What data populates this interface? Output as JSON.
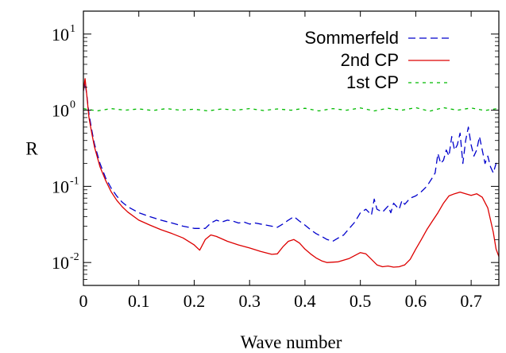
{
  "chart_data": {
    "type": "line",
    "title": "",
    "xlabel": "Wave number",
    "ylabel": "R",
    "xlim": [
      0,
      0.75
    ],
    "ylim": [
      0.005,
      20
    ],
    "yscale": "log",
    "xticks": [
      0,
      0.1,
      0.2,
      0.3,
      0.4,
      0.5,
      0.6,
      0.7
    ],
    "xtick_labels": [
      "0",
      "0.1",
      "0.2",
      "0.3",
      "0.4",
      "0.5",
      "0.6",
      "0.7"
    ],
    "yticks": [
      {
        "value": 0.01,
        "base": "10",
        "exp": "-2"
      },
      {
        "value": 0.1,
        "base": "10",
        "exp": "-1"
      },
      {
        "value": 1,
        "base": "10",
        "exp": "0"
      },
      {
        "value": 10,
        "base": "10",
        "exp": "1"
      }
    ],
    "legend_position": "top-right",
    "series": [
      {
        "name": "Sommerfeld",
        "color": "#0000cc",
        "dash": "dashed",
        "points": [
          [
            0,
            1.8
          ],
          [
            0.003,
            2.3
          ],
          [
            0.006,
            1.6
          ],
          [
            0.01,
            0.9
          ],
          [
            0.015,
            0.55
          ],
          [
            0.02,
            0.36
          ],
          [
            0.03,
            0.2
          ],
          [
            0.04,
            0.13
          ],
          [
            0.05,
            0.095
          ],
          [
            0.06,
            0.075
          ],
          [
            0.07,
            0.062
          ],
          [
            0.08,
            0.054
          ],
          [
            0.1,
            0.045
          ],
          [
            0.12,
            0.04
          ],
          [
            0.14,
            0.036
          ],
          [
            0.16,
            0.033
          ],
          [
            0.18,
            0.03
          ],
          [
            0.2,
            0.028
          ],
          [
            0.22,
            0.028
          ],
          [
            0.23,
            0.033
          ],
          [
            0.24,
            0.036
          ],
          [
            0.25,
            0.034
          ],
          [
            0.26,
            0.036
          ],
          [
            0.27,
            0.035
          ],
          [
            0.28,
            0.033
          ],
          [
            0.29,
            0.034
          ],
          [
            0.3,
            0.032
          ],
          [
            0.31,
            0.033
          ],
          [
            0.32,
            0.032
          ],
          [
            0.33,
            0.031
          ],
          [
            0.34,
            0.03
          ],
          [
            0.35,
            0.029
          ],
          [
            0.36,
            0.032
          ],
          [
            0.37,
            0.036
          ],
          [
            0.38,
            0.04
          ],
          [
            0.39,
            0.035
          ],
          [
            0.4,
            0.031
          ],
          [
            0.41,
            0.027
          ],
          [
            0.42,
            0.024
          ],
          [
            0.43,
            0.022
          ],
          [
            0.44,
            0.02
          ],
          [
            0.45,
            0.019
          ],
          [
            0.46,
            0.021
          ],
          [
            0.47,
            0.023
          ],
          [
            0.48,
            0.028
          ],
          [
            0.49,
            0.034
          ],
          [
            0.5,
            0.045
          ],
          [
            0.51,
            0.05
          ],
          [
            0.52,
            0.042
          ],
          [
            0.525,
            0.068
          ],
          [
            0.53,
            0.05
          ],
          [
            0.54,
            0.046
          ],
          [
            0.55,
            0.055
          ],
          [
            0.555,
            0.045
          ],
          [
            0.56,
            0.06
          ],
          [
            0.57,
            0.05
          ],
          [
            0.575,
            0.065
          ],
          [
            0.58,
            0.058
          ],
          [
            0.59,
            0.07
          ],
          [
            0.6,
            0.075
          ],
          [
            0.61,
            0.085
          ],
          [
            0.62,
            0.1
          ],
          [
            0.63,
            0.13
          ],
          [
            0.635,
            0.15
          ],
          [
            0.64,
            0.27
          ],
          [
            0.645,
            0.2
          ],
          [
            0.65,
            0.22
          ],
          [
            0.655,
            0.3
          ],
          [
            0.66,
            0.25
          ],
          [
            0.665,
            0.45
          ],
          [
            0.67,
            0.3
          ],
          [
            0.675,
            0.35
          ],
          [
            0.68,
            0.5
          ],
          [
            0.685,
            0.2
          ],
          [
            0.69,
            0.4
          ],
          [
            0.695,
            0.6
          ],
          [
            0.7,
            0.35
          ],
          [
            0.705,
            0.25
          ],
          [
            0.71,
            0.3
          ],
          [
            0.715,
            0.45
          ],
          [
            0.72,
            0.3
          ],
          [
            0.725,
            0.2
          ],
          [
            0.73,
            0.25
          ],
          [
            0.735,
            0.18
          ],
          [
            0.74,
            0.15
          ],
          [
            0.745,
            0.2
          ],
          [
            0.75,
            0.22
          ]
        ]
      },
      {
        "name": "2nd CP",
        "color": "#dd0000",
        "dash": "solid",
        "points": [
          [
            0,
            1.8
          ],
          [
            0.003,
            2.6
          ],
          [
            0.006,
            1.6
          ],
          [
            0.01,
            0.8
          ],
          [
            0.015,
            0.5
          ],
          [
            0.02,
            0.33
          ],
          [
            0.03,
            0.18
          ],
          [
            0.04,
            0.12
          ],
          [
            0.05,
            0.085
          ],
          [
            0.06,
            0.066
          ],
          [
            0.07,
            0.054
          ],
          [
            0.08,
            0.046
          ],
          [
            0.1,
            0.036
          ],
          [
            0.12,
            0.031
          ],
          [
            0.14,
            0.027
          ],
          [
            0.16,
            0.024
          ],
          [
            0.18,
            0.021
          ],
          [
            0.2,
            0.017
          ],
          [
            0.21,
            0.0145
          ],
          [
            0.22,
            0.02
          ],
          [
            0.23,
            0.023
          ],
          [
            0.24,
            0.022
          ],
          [
            0.26,
            0.019
          ],
          [
            0.28,
            0.017
          ],
          [
            0.3,
            0.0155
          ],
          [
            0.32,
            0.014
          ],
          [
            0.34,
            0.0128
          ],
          [
            0.35,
            0.013
          ],
          [
            0.36,
            0.016
          ],
          [
            0.37,
            0.019
          ],
          [
            0.38,
            0.02
          ],
          [
            0.39,
            0.018
          ],
          [
            0.4,
            0.015
          ],
          [
            0.41,
            0.013
          ],
          [
            0.42,
            0.0115
          ],
          [
            0.43,
            0.0105
          ],
          [
            0.44,
            0.01
          ],
          [
            0.46,
            0.0102
          ],
          [
            0.48,
            0.0113
          ],
          [
            0.5,
            0.0135
          ],
          [
            0.51,
            0.013
          ],
          [
            0.52,
            0.011
          ],
          [
            0.53,
            0.0093
          ],
          [
            0.54,
            0.0088
          ],
          [
            0.55,
            0.009
          ],
          [
            0.56,
            0.0087
          ],
          [
            0.57,
            0.0088
          ],
          [
            0.58,
            0.0093
          ],
          [
            0.59,
            0.011
          ],
          [
            0.6,
            0.015
          ],
          [
            0.61,
            0.02
          ],
          [
            0.62,
            0.027
          ],
          [
            0.63,
            0.035
          ],
          [
            0.64,
            0.045
          ],
          [
            0.65,
            0.06
          ],
          [
            0.66,
            0.075
          ],
          [
            0.67,
            0.08
          ],
          [
            0.68,
            0.084
          ],
          [
            0.69,
            0.08
          ],
          [
            0.7,
            0.076
          ],
          [
            0.71,
            0.08
          ],
          [
            0.72,
            0.072
          ],
          [
            0.73,
            0.052
          ],
          [
            0.74,
            0.025
          ],
          [
            0.745,
            0.015
          ],
          [
            0.75,
            0.012
          ]
        ]
      },
      {
        "name": "1st CP",
        "color": "#00bb00",
        "dash": "dotted",
        "points": [
          [
            0,
            1.05
          ],
          [
            0.025,
            0.98
          ],
          [
            0.05,
            1.05
          ],
          [
            0.075,
            1.0
          ],
          [
            0.1,
            1.04
          ],
          [
            0.125,
            0.99
          ],
          [
            0.15,
            1.05
          ],
          [
            0.175,
            1.0
          ],
          [
            0.2,
            1.03
          ],
          [
            0.225,
            0.98
          ],
          [
            0.25,
            1.04
          ],
          [
            0.275,
            1.0
          ],
          [
            0.3,
            1.05
          ],
          [
            0.325,
            0.99
          ],
          [
            0.35,
            1.04
          ],
          [
            0.375,
            1.0
          ],
          [
            0.4,
            1.06
          ],
          [
            0.425,
            0.98
          ],
          [
            0.45,
            1.05
          ],
          [
            0.475,
            1.0
          ],
          [
            0.5,
            1.07
          ],
          [
            0.525,
            0.98
          ],
          [
            0.55,
            1.06
          ],
          [
            0.575,
            1.0
          ],
          [
            0.6,
            1.08
          ],
          [
            0.625,
            0.97
          ],
          [
            0.65,
            1.08
          ],
          [
            0.675,
            1.0
          ],
          [
            0.7,
            1.07
          ],
          [
            0.725,
            0.99
          ],
          [
            0.75,
            1.06
          ]
        ]
      }
    ]
  }
}
